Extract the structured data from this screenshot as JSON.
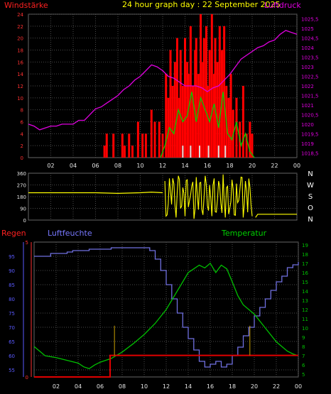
{
  "header": {
    "title": "24 hour graph day : 22 September 2025",
    "left_label": "Windstärke",
    "right_label": "Luftdruck"
  },
  "labels": {
    "regen": "Regen",
    "luftfeuchte": "Luftfeuchte",
    "temperatur": "Temperatur",
    "compass": [
      "N",
      "W",
      "S",
      "O",
      "N"
    ]
  },
  "colors": {
    "background": "#000000",
    "grid": "#4a4a4a",
    "wind": "#ff0000",
    "gust_avg": "#00d000",
    "pressure": "#e000e0",
    "direction": "#ffff00",
    "humidity": "#7070e0",
    "temperature": "#00c000",
    "rain": "#e00000",
    "axis_red": "#ff3030",
    "axis_magenta": "#e000e0",
    "axis_blue": "#5a5aff",
    "axis_green": "#00c000"
  },
  "chart_data": [
    {
      "type": "bar",
      "name": "wind-pressure",
      "x_ticks": [
        "02",
        "04",
        "06",
        "08",
        "10",
        "12",
        "14",
        "16",
        "18",
        "20",
        "22",
        "00"
      ],
      "xlim": [
        0,
        24
      ],
      "y_left_ticks": [
        "0",
        "2",
        "4",
        "6",
        "8",
        "10",
        "12",
        "14",
        "16",
        "18",
        "20",
        "22",
        "24"
      ],
      "ylim_left": [
        0,
        24
      ],
      "y_right_ticks": [
        "1018,5",
        "1019",
        "1019,5",
        "1020",
        "1020,5",
        "1021",
        "1021,5",
        "1022",
        "1022,5",
        "1023",
        "1023,5",
        "1024",
        "1024,5",
        "1025",
        "1025,5"
      ],
      "ylim_right": [
        1018.25,
        1025.75
      ],
      "grid": true,
      "series": [
        {
          "kind": "wind_bars",
          "x": [
            6.8,
            7.0,
            7.6,
            8.4,
            8.6,
            9.0,
            9.3,
            9.8,
            10.2,
            10.5,
            11.0,
            11.3,
            11.7,
            12.0,
            12.3,
            12.5,
            12.7,
            12.9,
            13.1,
            13.3,
            13.5,
            13.6,
            13.8,
            14.0,
            14.2,
            14.3,
            14.5,
            14.7,
            14.9,
            15.0,
            15.2,
            15.4,
            15.6,
            15.7,
            15.9,
            16.0,
            16.2,
            16.4,
            16.6,
            16.7,
            16.9,
            17.1,
            17.3,
            17.5,
            17.7,
            17.9,
            18.1,
            18.3,
            18.6,
            18.9,
            19.2,
            19.5,
            19.8,
            20.0
          ],
          "y": [
            2,
            4,
            4,
            4,
            2,
            4,
            2,
            6,
            4,
            4,
            8,
            6,
            6,
            4,
            14,
            10,
            18,
            12,
            16,
            20,
            10,
            18,
            12,
            20,
            16,
            14,
            22,
            12,
            18,
            20,
            14,
            24,
            16,
            20,
            22,
            12,
            18,
            24,
            14,
            20,
            16,
            22,
            18,
            22,
            12,
            10,
            14,
            8,
            10,
            6,
            12,
            4,
            6,
            4
          ]
        },
        {
          "kind": "wind_avg",
          "x": [
            11.8,
            12.2,
            12.6,
            13.0,
            13.4,
            13.8,
            14.2,
            14.6,
            15.0,
            15.4,
            15.8,
            16.2,
            16.6,
            17.0,
            17.4,
            17.8,
            18.2,
            18.6,
            19.0,
            19.4,
            19.8,
            20.2
          ],
          "y": [
            0,
            2,
            5,
            4,
            8,
            6,
            7,
            11,
            6,
            10,
            8,
            6,
            9,
            5,
            11,
            4,
            3,
            6,
            2,
            4,
            1,
            0
          ]
        },
        {
          "kind": "pressure",
          "x": [
            0,
            0.5,
            1.0,
            1.5,
            2.0,
            2.5,
            3.0,
            3.5,
            4.0,
            4.5,
            5.0,
            5.5,
            6.0,
            6.5,
            7.0,
            7.5,
            8.0,
            8.5,
            9.0,
            9.5,
            10.0,
            10.5,
            11.0,
            11.5,
            12.0,
            12.5,
            13.0,
            13.5,
            14.0,
            14.5,
            15.0,
            15.5,
            16.0,
            16.5,
            17.0,
            17.5,
            18.0,
            18.5,
            19.0,
            19.5,
            20.0,
            20.5,
            21.0,
            21.5,
            22.0,
            22.5,
            23.0,
            23.5,
            24.0
          ],
          "y": [
            1020.0,
            1019.9,
            1019.7,
            1019.8,
            1019.9,
            1019.9,
            1020.0,
            1020.0,
            1020.0,
            1020.2,
            1020.2,
            1020.5,
            1020.8,
            1020.9,
            1021.1,
            1021.3,
            1021.5,
            1021.8,
            1022.0,
            1022.3,
            1022.5,
            1022.8,
            1023.1,
            1023.0,
            1022.8,
            1022.5,
            1022.4,
            1022.2,
            1022.0,
            1022.0,
            1022.0,
            1021.9,
            1021.7,
            1021.9,
            1022.0,
            1022.3,
            1022.6,
            1023.0,
            1023.4,
            1023.6,
            1023.8,
            1024.0,
            1024.1,
            1024.3,
            1024.4,
            1024.7,
            1024.9,
            1024.8,
            1024.7
          ]
        }
      ]
    },
    {
      "type": "line",
      "name": "wind-direction",
      "x_ticks": [
        "02",
        "04",
        "06",
        "08",
        "10",
        "12",
        "14",
        "16",
        "18",
        "20",
        "22",
        "00"
      ],
      "xlim": [
        0,
        24
      ],
      "y_ticks": [
        "0",
        "90",
        "180",
        "270",
        "360"
      ],
      "ylim": [
        0,
        360
      ],
      "grid": true,
      "series": [
        {
          "kind": "direction_base",
          "x": [
            0,
            2,
            4,
            6,
            8,
            10,
            11,
            12,
            20.3,
            20.5,
            22,
            24
          ],
          "y": [
            210,
            210,
            210,
            210,
            205,
            210,
            215,
            210,
            20,
            45,
            45,
            45
          ]
        },
        {
          "kind": "direction_noise",
          "x": [
            12.2,
            12.4,
            12.6,
            12.8,
            13.0,
            13.2,
            13.4,
            13.6,
            13.8,
            14.0,
            14.2,
            14.4,
            14.6,
            14.8,
            15.0,
            15.2,
            15.4,
            15.6,
            15.8,
            16.0,
            16.2,
            16.4,
            16.6,
            16.8,
            17.0,
            17.2,
            17.4,
            17.6,
            17.8,
            18.0,
            18.2,
            18.4,
            18.6,
            18.8,
            19.0,
            19.2,
            19.4,
            19.6,
            19.8,
            20.0
          ],
          "y": [
            300,
            40,
            320,
            120,
            280,
            20,
            340,
            90,
            250,
            30,
            310,
            150,
            260,
            10,
            330,
            80,
            290,
            40,
            340,
            110,
            270,
            30,
            320,
            60,
            300,
            130,
            350,
            20,
            260,
            90,
            310,
            40,
            280,
            150,
            330,
            20,
            300,
            60,
            250,
            30
          ]
        }
      ]
    },
    {
      "type": "line",
      "name": "humidity-temperature-rain",
      "x_ticks": [
        "02",
        "04",
        "06",
        "08",
        "10",
        "12",
        "14",
        "16",
        "18",
        "20",
        "22",
        "00"
      ],
      "xlim": [
        0,
        24
      ],
      "y_hum_ticks": [
        "55",
        "60",
        "65",
        "70",
        "75",
        "80",
        "85",
        "90",
        "95"
      ],
      "ylim_hum": [
        52.5,
        100
      ],
      "y_temp_ticks": [
        "5",
        "6",
        "7",
        "8",
        "9",
        "10",
        "11",
        "12",
        "13",
        "14",
        "15",
        "16",
        "17",
        "18",
        "19"
      ],
      "ylim_temp": [
        4.7,
        19.3
      ],
      "y_rain_ticks": [
        "0",
        "5"
      ],
      "ylim_rain": [
        0,
        5
      ],
      "grid": true,
      "series": [
        {
          "kind": "humidity",
          "x": [
            0,
            1.0,
            1.5,
            2.0,
            3.0,
            3.5,
            4.0,
            5.0,
            6.0,
            7.0,
            8.0,
            9.0,
            10.0,
            10.5,
            11.0,
            11.5,
            12.0,
            12.5,
            13.0,
            13.5,
            14.0,
            14.5,
            15.0,
            15.5,
            16.0,
            16.5,
            17.0,
            17.5,
            18.0,
            18.5,
            19.0,
            19.5,
            20.0,
            20.5,
            21.0,
            21.5,
            22.0,
            22.5,
            23.0,
            23.5,
            24.0
          ],
          "y": [
            95,
            95,
            96,
            96,
            96.5,
            97,
            97,
            97.5,
            97.5,
            98,
            98,
            98,
            98,
            97,
            94,
            90,
            85,
            80,
            75,
            70,
            66,
            62,
            58,
            56,
            57,
            58,
            56,
            57,
            60,
            63,
            67,
            70,
            74,
            77,
            80,
            83,
            86,
            88,
            91,
            92,
            93
          ]
        },
        {
          "kind": "temperature",
          "x": [
            0,
            0.5,
            1.0,
            2.0,
            3.0,
            4.0,
            4.5,
            5.0,
            5.5,
            6.0,
            7.0,
            8.0,
            9.0,
            10.0,
            11.0,
            12.0,
            13.0,
            13.5,
            14.0,
            14.5,
            15.0,
            15.5,
            16.0,
            16.5,
            17.0,
            17.5,
            18.0,
            18.5,
            19.0,
            20.0,
            21.0,
            22.0,
            23.0,
            23.5,
            24.0
          ],
          "y": [
            8.0,
            7.5,
            7.0,
            6.8,
            6.5,
            6.2,
            5.8,
            5.6,
            6.0,
            6.3,
            6.7,
            7.4,
            8.3,
            9.3,
            10.5,
            12.0,
            14.0,
            15.0,
            16.0,
            16.4,
            16.8,
            16.5,
            17.0,
            16.0,
            16.8,
            16.4,
            15.0,
            13.5,
            12.5,
            11.5,
            10.0,
            8.5,
            7.5,
            7.2,
            7.0
          ]
        },
        {
          "kind": "rain",
          "x": [
            0,
            6.9,
            6.9,
            24
          ],
          "y": [
            0,
            0,
            0.8,
            0.8
          ],
          "pulses_x": [
            7.3,
            19.6
          ]
        }
      ]
    }
  ]
}
